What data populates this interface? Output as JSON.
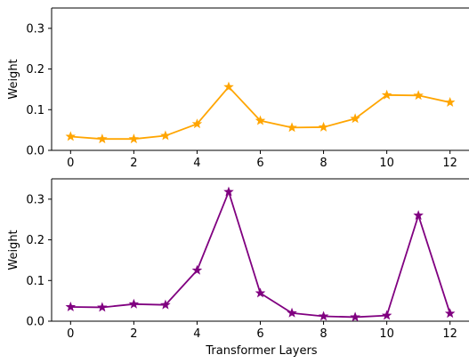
{
  "chart_data": [
    {
      "type": "line",
      "xlabel": "",
      "ylabel": "Weight",
      "xlim": [
        -0.6,
        12.6
      ],
      "ylim": [
        0,
        0.35
      ],
      "xticks": [
        0,
        2,
        4,
        6,
        8,
        10,
        12
      ],
      "yticks": [
        0.0,
        0.1,
        0.2,
        0.3
      ],
      "grid": false,
      "legend": "none",
      "series": [
        {
          "color": "#FFA500",
          "marker": "star",
          "x": [
            0,
            1,
            2,
            3,
            4,
            5,
            6,
            7,
            8,
            9,
            10,
            11,
            12
          ],
          "values": [
            0.034,
            0.028,
            0.028,
            0.036,
            0.065,
            0.156,
            0.073,
            0.056,
            0.057,
            0.078,
            0.136,
            0.135,
            0.118
          ]
        }
      ]
    },
    {
      "type": "line",
      "xlabel": "Transformer Layers",
      "ylabel": "Weight",
      "xlim": [
        -0.6,
        12.6
      ],
      "ylim": [
        0,
        0.35
      ],
      "xticks": [
        0,
        2,
        4,
        6,
        8,
        10,
        12
      ],
      "yticks": [
        0.0,
        0.1,
        0.2,
        0.3
      ],
      "grid": false,
      "legend": "none",
      "series": [
        {
          "color": "#800080",
          "marker": "star",
          "x": [
            0,
            1,
            2,
            3,
            4,
            5,
            6,
            7,
            8,
            9,
            10,
            11,
            12
          ],
          "values": [
            0.035,
            0.034,
            0.042,
            0.04,
            0.125,
            0.318,
            0.069,
            0.02,
            0.012,
            0.01,
            0.014,
            0.26,
            0.019
          ]
        }
      ]
    }
  ]
}
